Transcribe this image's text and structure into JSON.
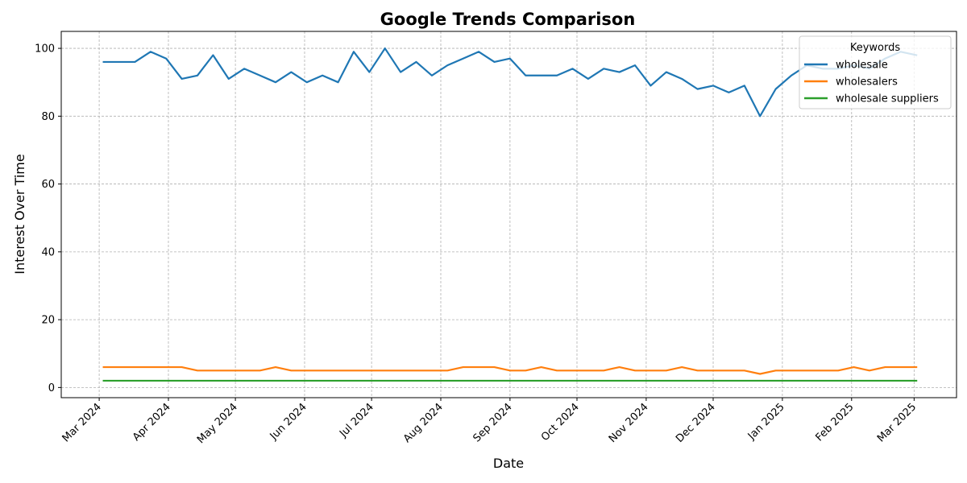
{
  "chart_data": {
    "type": "line",
    "title": "Google Trends Comparison",
    "xlabel": "Date",
    "ylabel": "Interest Over Time",
    "ylim": [
      -3,
      105
    ],
    "xlim": [
      "2024-02-13",
      "2025-03-20"
    ],
    "yticks": [
      0,
      20,
      40,
      60,
      80,
      100
    ],
    "xticks": [
      {
        "date": "2024-03-01",
        "label": "Mar 2024"
      },
      {
        "date": "2024-04-01",
        "label": "Apr 2024"
      },
      {
        "date": "2024-05-01",
        "label": "May 2024"
      },
      {
        "date": "2024-06-01",
        "label": "Jun 2024"
      },
      {
        "date": "2024-07-01",
        "label": "Jul 2024"
      },
      {
        "date": "2024-08-01",
        "label": "Aug 2024"
      },
      {
        "date": "2024-09-01",
        "label": "Sep 2024"
      },
      {
        "date": "2024-10-01",
        "label": "Oct 2024"
      },
      {
        "date": "2024-11-01",
        "label": "Nov 2024"
      },
      {
        "date": "2024-12-01",
        "label": "Dec 2024"
      },
      {
        "date": "2025-01-01",
        "label": "Jan 2025"
      },
      {
        "date": "2025-02-01",
        "label": "Feb 2025"
      },
      {
        "date": "2025-03-01",
        "label": "Mar 2025"
      }
    ],
    "grid": true,
    "legend": {
      "title": "Keywords",
      "placement": "top-right"
    },
    "x": [
      "2024-03-03",
      "2024-03-10",
      "2024-03-17",
      "2024-03-24",
      "2024-03-31",
      "2024-04-07",
      "2024-04-14",
      "2024-04-21",
      "2024-04-28",
      "2024-05-05",
      "2024-05-12",
      "2024-05-19",
      "2024-05-26",
      "2024-06-02",
      "2024-06-09",
      "2024-06-16",
      "2024-06-23",
      "2024-06-30",
      "2024-07-07",
      "2024-07-14",
      "2024-07-21",
      "2024-07-28",
      "2024-08-04",
      "2024-08-11",
      "2024-08-18",
      "2024-08-25",
      "2024-09-01",
      "2024-09-08",
      "2024-09-15",
      "2024-09-22",
      "2024-09-29",
      "2024-10-06",
      "2024-10-13",
      "2024-10-20",
      "2024-10-27",
      "2024-11-03",
      "2024-11-10",
      "2024-11-17",
      "2024-11-24",
      "2024-12-01",
      "2024-12-08",
      "2024-12-15",
      "2024-12-22",
      "2024-12-29",
      "2025-01-05",
      "2025-01-12",
      "2025-01-19",
      "2025-01-26",
      "2025-02-02",
      "2025-02-09",
      "2025-02-16",
      "2025-02-23",
      "2025-03-02"
    ],
    "series": [
      {
        "name": "wholesale",
        "color": "#1f77b4",
        "values": [
          96,
          96,
          96,
          99,
          97,
          91,
          92,
          98,
          91,
          94,
          92,
          90,
          93,
          90,
          92,
          90,
          99,
          93,
          100,
          93,
          96,
          92,
          95,
          97,
          99,
          96,
          97,
          92,
          92,
          92,
          94,
          91,
          94,
          93,
          95,
          89,
          93,
          91,
          88,
          89,
          87,
          89,
          80,
          88,
          92,
          95,
          94,
          94,
          95,
          94,
          97,
          99,
          98
        ]
      },
      {
        "name": "wholesalers",
        "color": "#ff7f0e",
        "values": [
          6,
          6,
          6,
          6,
          6,
          6,
          5,
          5,
          5,
          5,
          5,
          6,
          5,
          5,
          5,
          5,
          5,
          5,
          5,
          5,
          5,
          5,
          5,
          6,
          6,
          6,
          5,
          5,
          6,
          5,
          5,
          5,
          5,
          6,
          5,
          5,
          5,
          6,
          5,
          5,
          5,
          5,
          4,
          5,
          5,
          5,
          5,
          5,
          6,
          5,
          6,
          6,
          6
        ]
      },
      {
        "name": "wholesale suppliers",
        "color": "#2ca02c",
        "values": [
          2,
          2,
          2,
          2,
          2,
          2,
          2,
          2,
          2,
          2,
          2,
          2,
          2,
          2,
          2,
          2,
          2,
          2,
          2,
          2,
          2,
          2,
          2,
          2,
          2,
          2,
          2,
          2,
          2,
          2,
          2,
          2,
          2,
          2,
          2,
          2,
          2,
          2,
          2,
          2,
          2,
          2,
          2,
          2,
          2,
          2,
          2,
          2,
          2,
          2,
          2,
          2,
          2
        ]
      }
    ]
  }
}
